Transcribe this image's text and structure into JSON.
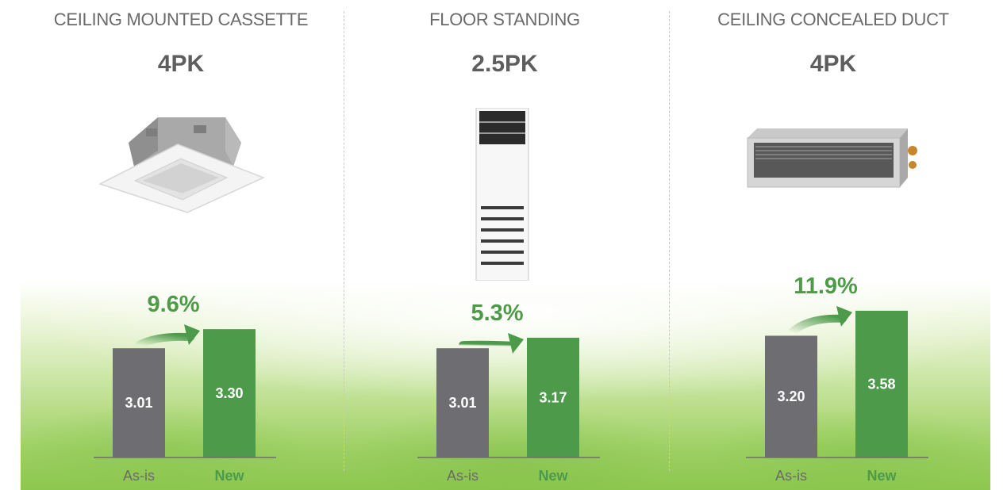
{
  "chart_data": [
    {
      "type": "bar",
      "title": "CEILING MOUNTED CASSETTE",
      "subtitle": "4PK",
      "categories": [
        "As-is",
        "New"
      ],
      "values": [
        3.01,
        3.3
      ],
      "value_labels": [
        "3.01",
        "3.30"
      ],
      "annotation": "9.6%",
      "bar_colors": [
        "#6e6e72",
        "#4c9a4a"
      ],
      "category_colors": [
        "#6b6b6b",
        "#4c9a4a"
      ],
      "image": "ceiling-cassette-unit"
    },
    {
      "type": "bar",
      "title": "FLOOR STANDING",
      "subtitle": "2.5PK",
      "categories": [
        "As-is",
        "New"
      ],
      "values": [
        3.01,
        3.17
      ],
      "value_labels": [
        "3.01",
        "3.17"
      ],
      "annotation": "5.3%",
      "bar_colors": [
        "#6e6e72",
        "#4c9a4a"
      ],
      "category_colors": [
        "#6b6b6b",
        "#4c9a4a"
      ],
      "image": "floor-standing-unit"
    },
    {
      "type": "bar",
      "title": "CEILING CONCEALED DUCT",
      "subtitle": "4PK",
      "categories": [
        "As-is",
        "New"
      ],
      "values": [
        3.2,
        3.58
      ],
      "value_labels": [
        "3.20",
        "3.58"
      ],
      "annotation": "11.9%",
      "bar_colors": [
        "#6e6e72",
        "#4c9a4a"
      ],
      "category_colors": [
        "#6b6b6b",
        "#4c9a4a"
      ],
      "image": "ceiling-duct-unit"
    }
  ],
  "colors": {
    "as_is_bar": "#6e6e72",
    "new_bar": "#4c9a4a",
    "accent_green": "#4e9b47",
    "heading_text": "#6b6b6b"
  }
}
